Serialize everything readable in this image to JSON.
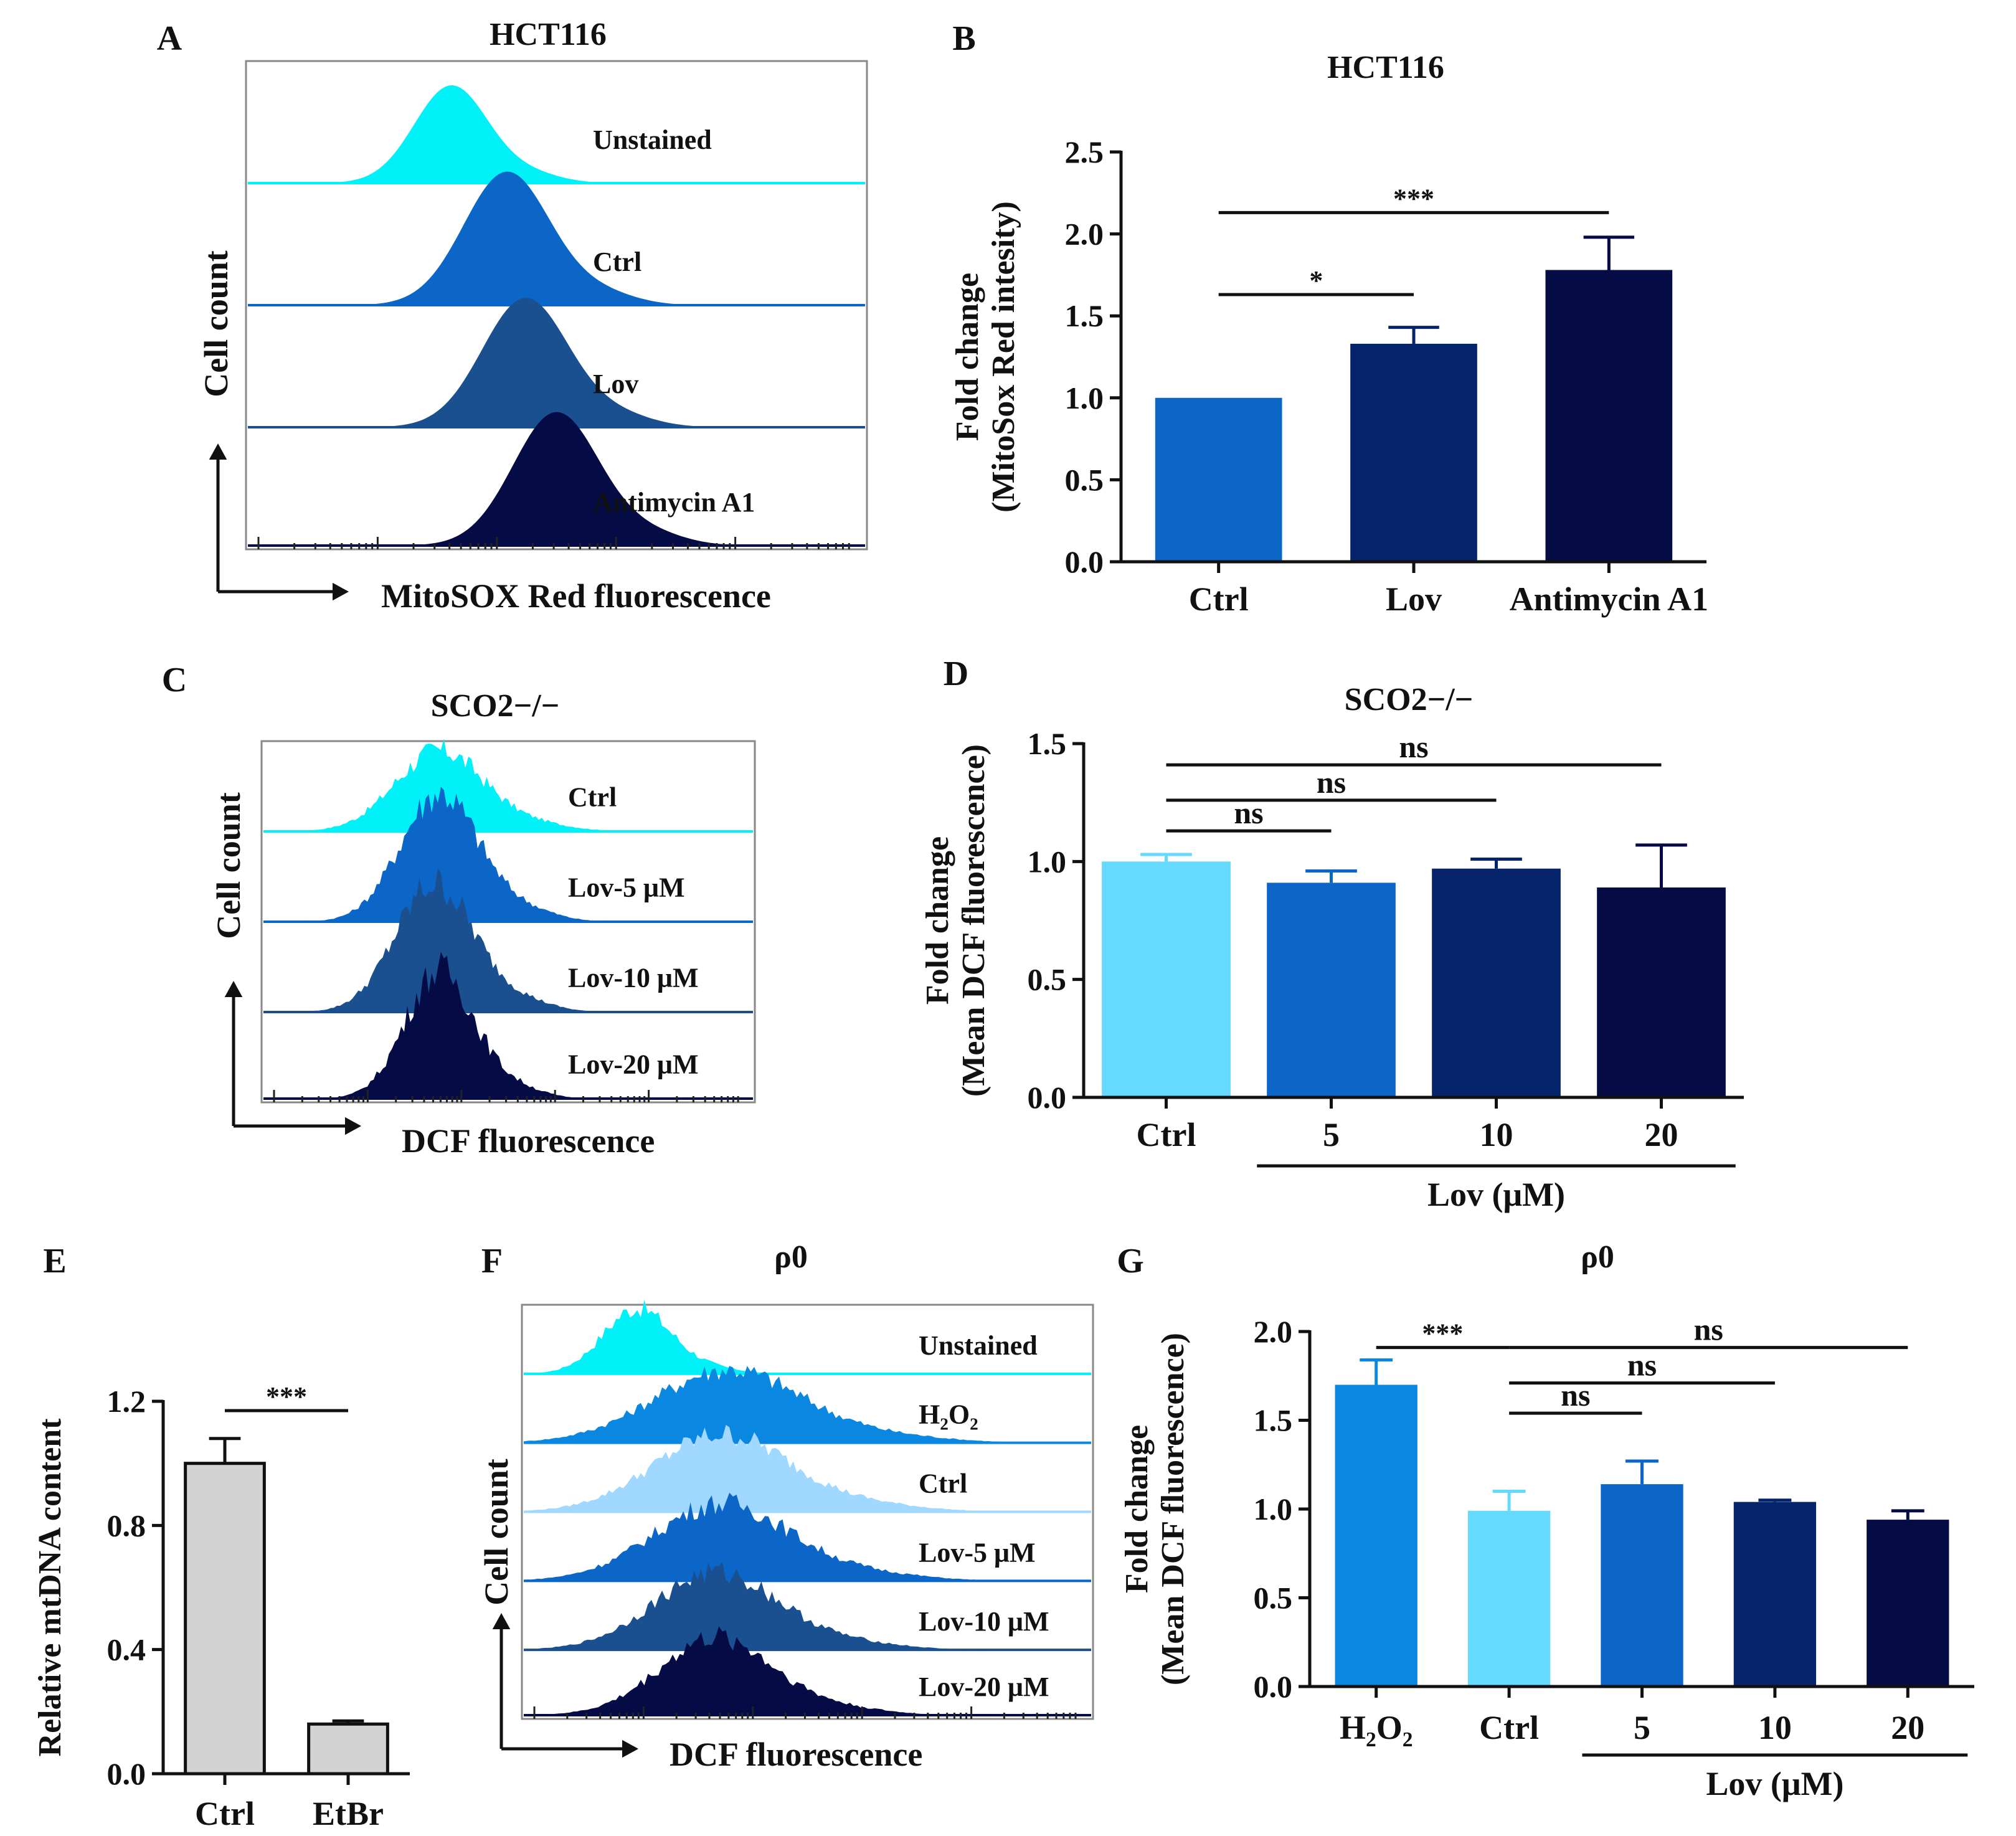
{
  "colors": {
    "cyan": "#00f2f8",
    "light_cyan": "#66d9ff",
    "pale_blue": "#a0d8ff",
    "mid_blue": "#0a87e0",
    "blue": "#0b66c7",
    "dark_blue": "#1a4f90",
    "navy": "#06246b",
    "darkest": "#050b45",
    "gray": "#d3d3d3",
    "axis": "#111111"
  },
  "chart_data": [
    {
      "panel": "A",
      "type": "histogram",
      "title": "HCT116",
      "xlabel": "MitoSOX Red fluorescence",
      "ylabel": "Cell count",
      "traces": [
        {
          "label": "Unstained",
          "center": 0.33,
          "width": 0.06,
          "peak": 1.0,
          "color": "cyan"
        },
        {
          "label": "Ctrl",
          "center": 0.42,
          "width": 0.07,
          "peak": 0.95,
          "color": "blue"
        },
        {
          "label": "Lov",
          "center": 0.45,
          "width": 0.07,
          "peak": 0.92,
          "color": "dark_blue"
        },
        {
          "label": "Antimycin A1",
          "center": 0.5,
          "width": 0.07,
          "peak": 0.95,
          "color": "darkest"
        }
      ]
    },
    {
      "panel": "B",
      "type": "bar",
      "title": "HCT116",
      "ylabel_lines": [
        "Fold change",
        "(MitoSox Red intesity)"
      ],
      "categories": [
        "Ctrl",
        "Lov",
        "Antimycin A1"
      ],
      "values": [
        1.0,
        1.33,
        1.78
      ],
      "errors": [
        0,
        0.1,
        0.2
      ],
      "colors": [
        "blue",
        "navy",
        "darkest"
      ],
      "ylim": [
        0,
        2.5
      ],
      "yticks": [
        "0.0",
        "0.5",
        "1.0",
        "1.5",
        "2.0",
        "2.5"
      ],
      "significance": [
        {
          "from": 0,
          "to": 1,
          "label": "*",
          "level": 1.63
        },
        {
          "from": 0,
          "to": 2,
          "label": "***",
          "level": 2.13
        }
      ]
    },
    {
      "panel": "C",
      "type": "histogram",
      "title": "SCO2−/−",
      "xlabel": "DCF fluorescence",
      "ylabel": "Cell count",
      "traces": [
        {
          "label": "Ctrl",
          "center": 0.36,
          "width": 0.09,
          "peak": 1.0,
          "color": "cyan"
        },
        {
          "label": "Lov-5 μM",
          "center": 0.36,
          "width": 0.08,
          "peak": 0.95,
          "color": "blue"
        },
        {
          "label": "Lov-10 μM",
          "center": 0.35,
          "width": 0.08,
          "peak": 0.95,
          "color": "dark_blue"
        },
        {
          "label": "Lov-20 μM",
          "center": 0.36,
          "width": 0.07,
          "peak": 0.95,
          "color": "darkest"
        }
      ]
    },
    {
      "panel": "D",
      "type": "bar",
      "title": "SCO2−/−",
      "ylabel_lines": [
        "Fold change",
        "(Mean DCF fluorescence)"
      ],
      "categories": [
        "Ctrl",
        "5",
        "10",
        "20"
      ],
      "values": [
        1.0,
        0.91,
        0.97,
        0.89
      ],
      "errors": [
        0.03,
        0.05,
        0.04,
        0.18
      ],
      "colors": [
        "light_cyan",
        "blue",
        "navy",
        "darkest"
      ],
      "ylim": [
        0,
        1.5
      ],
      "yticks": [
        "0.0",
        "0.5",
        "1.0",
        "1.5"
      ],
      "group_label": "Lov (μM)",
      "group_range": [
        1,
        3
      ],
      "significance": [
        {
          "from": 0,
          "to": 1,
          "label": "ns",
          "level": 1.13
        },
        {
          "from": 0,
          "to": 2,
          "label": "ns",
          "level": 1.26
        },
        {
          "from": 0,
          "to": 3,
          "label": "ns",
          "level": 1.41
        }
      ]
    },
    {
      "panel": "E",
      "type": "bar",
      "ylabel_lines": [
        "Relative mtDNA content"
      ],
      "categories": [
        "Ctrl",
        "EtBr"
      ],
      "values": [
        1.0,
        0.16
      ],
      "errors": [
        0.08,
        0.01
      ],
      "colors": [
        "gray",
        "gray"
      ],
      "ylim": [
        0,
        1.2
      ],
      "yticks": [
        "0.0",
        "0.4",
        "0.8",
        "1.2"
      ],
      "significance": [
        {
          "from": 0,
          "to": 1,
          "label": "***",
          "level": 1.17
        }
      ]
    },
    {
      "panel": "F",
      "type": "histogram",
      "title": "ρ0",
      "xlabel": "DCF fluorescence",
      "ylabel": "Cell count",
      "traces": [
        {
          "label": "Unstained",
          "center": 0.2,
          "width": 0.06,
          "peak": 1.0,
          "color": "cyan"
        },
        {
          "label": "H2O2",
          "center": 0.36,
          "width": 0.13,
          "peak": 0.85,
          "color": "mid_blue",
          "subscript_label": true
        },
        {
          "label": "Ctrl",
          "center": 0.35,
          "width": 0.12,
          "peak": 0.9,
          "color": "pale_blue"
        },
        {
          "label": "Lov-5 μM",
          "center": 0.35,
          "width": 0.12,
          "peak": 0.9,
          "color": "blue"
        },
        {
          "label": "Lov-10 μM",
          "center": 0.34,
          "width": 0.11,
          "peak": 0.9,
          "color": "dark_blue"
        },
        {
          "label": "Lov-20 μM",
          "center": 0.34,
          "width": 0.1,
          "peak": 0.9,
          "color": "darkest"
        }
      ]
    },
    {
      "panel": "G",
      "type": "bar",
      "title": "ρ0",
      "ylabel_lines": [
        "Fold change",
        "(Mean DCF fluorescence)"
      ],
      "categories": [
        "H2O2",
        "Ctrl",
        "5",
        "10",
        "20"
      ],
      "values": [
        1.7,
        0.99,
        1.14,
        1.04,
        0.94
      ],
      "errors": [
        0.14,
        0.11,
        0.13,
        0.01,
        0.05
      ],
      "colors": [
        "mid_blue",
        "light_cyan",
        "blue",
        "navy",
        "darkest"
      ],
      "ylim": [
        0,
        2.0
      ],
      "yticks": [
        "0.0",
        "0.5",
        "1.0",
        "1.5",
        "2.0"
      ],
      "group_label": "Lov (μM)",
      "group_range": [
        2,
        4
      ],
      "significance": [
        {
          "from": 0,
          "to": 1,
          "label": "***",
          "level": 1.91
        },
        {
          "from": 1,
          "to": 2,
          "label": "ns",
          "level": 1.54
        },
        {
          "from": 1,
          "to": 3,
          "label": "ns",
          "level": 1.71
        },
        {
          "from": 1,
          "to": 4,
          "label": "ns",
          "level": 1.91
        }
      ]
    }
  ]
}
